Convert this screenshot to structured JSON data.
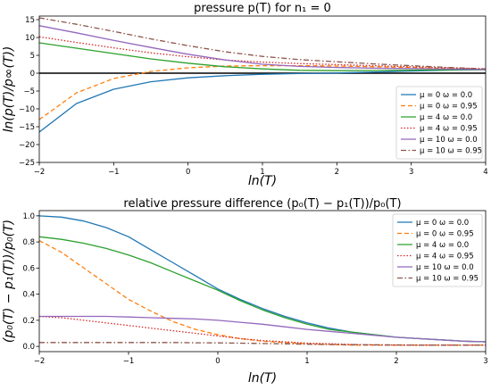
{
  "colors": {
    "mu0_w0": "#1f77b4",
    "mu0_w095": "#ff7f0e",
    "mu4_w0": "#2ca02c",
    "mu4_w095": "#d62728",
    "mu10_w0": "#9467bd",
    "mu10_w095": "#8c564b"
  },
  "chart_data": [
    {
      "type": "line",
      "title": "pressure p(T) for n₁ = 0",
      "xlabel": "ln(T)",
      "ylabel": "ln(p(T)/p∞(T))",
      "xlim": [
        -2,
        4
      ],
      "ylim": [
        -25,
        16
      ],
      "xticks": [
        -2,
        -1,
        0,
        1,
        2,
        3,
        4
      ],
      "yticks": [
        15,
        10,
        5,
        0,
        -5,
        -10,
        -15,
        -20,
        -25
      ],
      "hline": 0,
      "grid": false,
      "legend_position": "bottom-right",
      "x": [
        -2,
        -1.5,
        -1,
        -0.5,
        0,
        0.5,
        1,
        1.5,
        2,
        2.5,
        3,
        3.5,
        4
      ],
      "series": [
        {
          "name": "μ = 0  ω = 0.0",
          "style": "solid",
          "color_key": "mu0_w0",
          "values": [
            -16.5,
            -8.5,
            -4.5,
            -2.4,
            -1.3,
            -0.7,
            -0.3,
            -0.1,
            0.05,
            0.3,
            0.6,
            0.85,
            1.0
          ]
        },
        {
          "name": "μ = 0  ω = 0.95",
          "style": "dashed",
          "color_key": "mu0_w095",
          "values": [
            -13.0,
            -5.5,
            -1.5,
            0.5,
            1.5,
            2.0,
            2.1,
            2.1,
            2.0,
            1.8,
            1.6,
            1.3,
            1.1
          ]
        },
        {
          "name": "μ = 4  ω = 0.0",
          "style": "solid",
          "color_key": "mu4_w0",
          "values": [
            8.5,
            7.0,
            5.5,
            4.0,
            2.8,
            1.8,
            1.2,
            0.8,
            0.7,
            0.75,
            0.85,
            0.95,
            1.0
          ]
        },
        {
          "name": "μ = 4  ω = 0.95",
          "style": "dotted",
          "color_key": "mu4_w095",
          "values": [
            10.2,
            8.6,
            7.1,
            5.7,
            4.6,
            3.7,
            3.1,
            2.7,
            2.4,
            2.1,
            1.8,
            1.5,
            1.2
          ]
        },
        {
          "name": "μ = 10  ω = 0.0",
          "style": "solid",
          "color_key": "mu10_w0",
          "values": [
            13.3,
            11.3,
            9.2,
            7.2,
            5.3,
            3.7,
            2.5,
            1.9,
            1.6,
            1.4,
            1.3,
            1.15,
            1.05
          ]
        },
        {
          "name": "μ = 10  ω = 0.95",
          "style": "dashdot",
          "color_key": "mu10_w095",
          "values": [
            15.5,
            13.7,
            11.7,
            9.6,
            7.7,
            6.0,
            4.7,
            3.8,
            3.2,
            2.6,
            2.1,
            1.6,
            1.2
          ]
        }
      ]
    },
    {
      "type": "line",
      "title": "relative pressure difference (p₀(T) − p₁(T))/p₀(T)",
      "xlabel": "ln(T)",
      "ylabel": "(p₀(T) − p₁(T))/p₀(T)",
      "xlim": [
        -2,
        3
      ],
      "ylim": [
        -0.04,
        1.04
      ],
      "xticks": [
        -2,
        -1,
        0,
        1,
        2,
        3
      ],
      "yticks": [
        0.0,
        0.2,
        0.4,
        0.6,
        0.8,
        1.0
      ],
      "grid": false,
      "legend_position": "top-right",
      "x": [
        -2,
        -1.75,
        -1.5,
        -1.25,
        -1,
        -0.75,
        -0.5,
        -0.25,
        0,
        0.25,
        0.5,
        0.75,
        1,
        1.25,
        1.5,
        1.75,
        2,
        2.25,
        2.5,
        2.75,
        3
      ],
      "series": [
        {
          "name": "μ = 0  ω = 0.0",
          "style": "solid",
          "color_key": "mu0_w0",
          "values": [
            1.0,
            0.99,
            0.96,
            0.91,
            0.84,
            0.74,
            0.64,
            0.54,
            0.44,
            0.36,
            0.29,
            0.23,
            0.18,
            0.14,
            0.11,
            0.09,
            0.07,
            0.06,
            0.05,
            0.04,
            0.035
          ]
        },
        {
          "name": "μ = 0  ω = 0.95",
          "style": "dashed",
          "color_key": "mu0_w095",
          "values": [
            0.81,
            0.72,
            0.6,
            0.48,
            0.36,
            0.27,
            0.19,
            0.13,
            0.09,
            0.06,
            0.04,
            0.03,
            0.02,
            0.015,
            0.01,
            0.01,
            0.01,
            0.01,
            0.01,
            0.01,
            0.01
          ]
        },
        {
          "name": "μ = 4  ω = 0.0",
          "style": "solid",
          "color_key": "mu4_w0",
          "values": [
            0.84,
            0.82,
            0.79,
            0.75,
            0.7,
            0.64,
            0.57,
            0.5,
            0.43,
            0.35,
            0.28,
            0.22,
            0.17,
            0.13,
            0.11,
            0.09,
            0.07,
            0.06,
            0.05,
            0.04,
            0.035
          ]
        },
        {
          "name": "μ = 4  ω = 0.95",
          "style": "dotted",
          "color_key": "mu4_w095",
          "values": [
            0.23,
            0.22,
            0.2,
            0.18,
            0.16,
            0.14,
            0.12,
            0.1,
            0.08,
            0.06,
            0.045,
            0.035,
            0.025,
            0.02,
            0.015,
            0.012,
            0.01,
            0.01,
            0.01,
            0.01,
            0.01
          ]
        },
        {
          "name": "μ = 10  ω = 0.0",
          "style": "solid",
          "color_key": "mu10_w0",
          "values": [
            0.23,
            0.23,
            0.23,
            0.23,
            0.225,
            0.22,
            0.215,
            0.21,
            0.2,
            0.185,
            0.17,
            0.15,
            0.13,
            0.115,
            0.1,
            0.085,
            0.07,
            0.06,
            0.05,
            0.04,
            0.035
          ]
        },
        {
          "name": "μ = 10  ω = 0.95",
          "style": "dashdot",
          "color_key": "mu10_w095",
          "values": [
            0.03,
            0.03,
            0.03,
            0.03,
            0.03,
            0.03,
            0.03,
            0.028,
            0.027,
            0.025,
            0.022,
            0.02,
            0.017,
            0.015,
            0.013,
            0.012,
            0.011,
            0.01,
            0.01,
            0.01,
            0.01
          ]
        }
      ]
    }
  ]
}
